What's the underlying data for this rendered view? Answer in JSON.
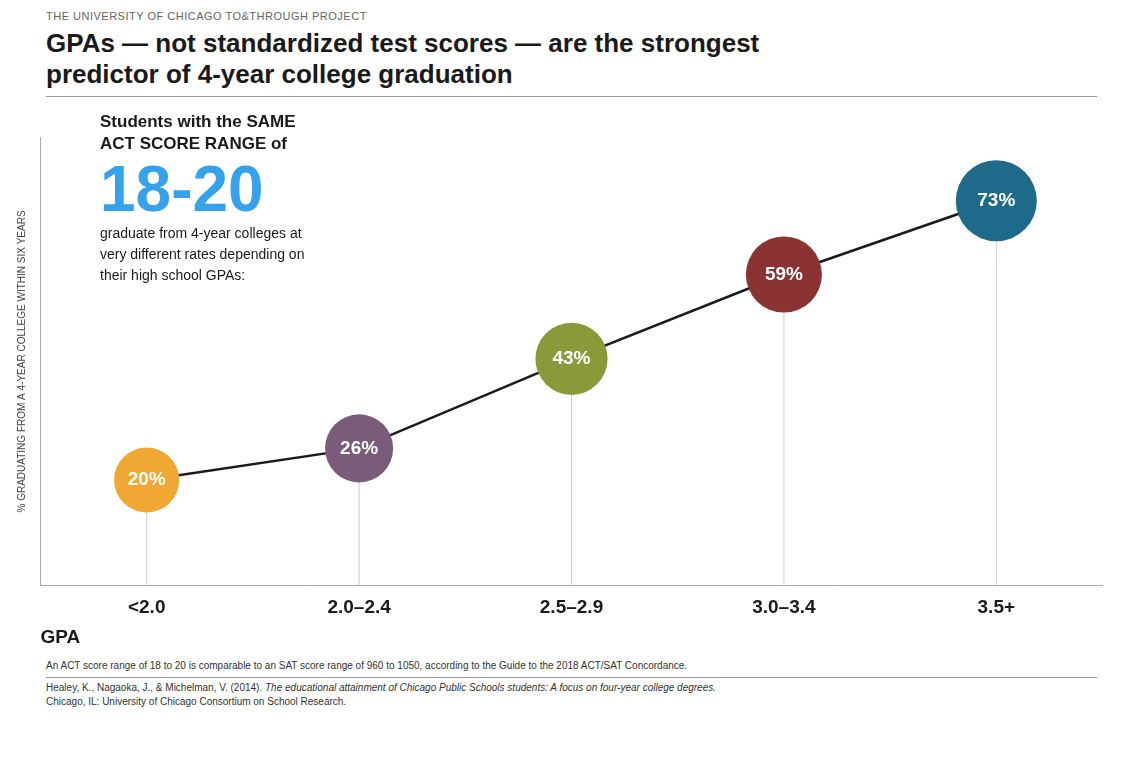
{
  "chart_data": {
    "type": "line",
    "subtitle": "THE UNIVERSITY OF CHICAGO TO&THROUGH PROJECT",
    "title": "GPAs — not standardized test scores — are the strongest\npredictor of 4-year college graduation",
    "categories": [
      "<2.0",
      "2.0–2.4",
      "2.5–2.9",
      "3.0–3.4",
      "3.5+"
    ],
    "values": [
      20,
      26,
      43,
      59,
      73
    ],
    "value_labels": [
      "20%",
      "26%",
      "43%",
      "59%",
      "73%"
    ],
    "data_labels": true,
    "sizes": [
      2200,
      2400,
      2700,
      3000,
      3400
    ],
    "colors": [
      "#f0a832",
      "#7a5c7a",
      "#8a9a3a",
      "#8b3333",
      "#1e6a8a"
    ],
    "color": "#1a1a1a",
    "marker": "circle",
    "xlabel": "GPA",
    "ylabel": "% GRADUATING FROM A 4-YEAR COLLEGE WITHIN SIX YEARS",
    "ylim": [
      0,
      85
    ],
    "tick_labels": "x",
    "grid": false,
    "annotations": [
      "Students with the SAME\nACT SCORE RANGE of",
      "18-20",
      "graduate from 4-year colleges at\nvery different rates depending on\ntheir high school GPAs:"
    ],
    "footnotes": [
      "An ACT score range of 18 to 20 is comparable to an SAT score range of 960 to 1050, according to the Guide to the 2018 ACT/SAT Concordance."
    ],
    "source": [
      "Healey, K., Nagaoka, J., & Michelman, V. (2014). ",
      "The educational attainment of Chicago Public Schools students: A focus on four-year college degrees.",
      "Chicago, IL: University of Chicago Consortium on School Research."
    ]
  }
}
